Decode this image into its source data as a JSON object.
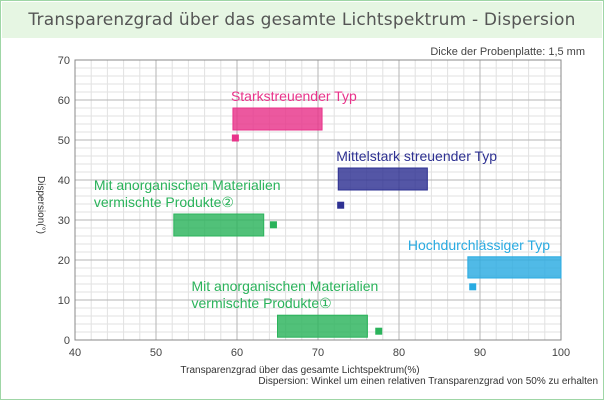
{
  "title": "Transparenzgrad über das gesamte Lichtspektrum  - Dispersion",
  "subtitle": "Dicke der Probenplatte: 1,5 mm",
  "footnote": "Dispersion: Winkel um einen relativen Transparenzgrad von 50% zu erhalten",
  "chart_data": {
    "type": "scatter",
    "title": "Transparenzgrad über das gesamte Lichtspektrum  - Dispersion",
    "xlabel": "Transparenzgrad über das gesamte Lichtspektrum(%)",
    "ylabel": "Dispersion(°)",
    "xlim": [
      40,
      100
    ],
    "ylim": [
      0,
      70
    ],
    "x_ticks": [
      40,
      50,
      60,
      70,
      80,
      90,
      100
    ],
    "y_ticks": [
      0,
      10,
      20,
      30,
      40,
      50,
      60,
      70
    ],
    "grid": true,
    "minor_grid": true,
    "series": [
      {
        "name": "Starkstreuender Typ",
        "color": "#e8338a",
        "label_lines": [
          "Starkstreuender Typ"
        ],
        "x_range": [
          59.5,
          70.5
        ],
        "y_range": [
          52.5,
          58
        ],
        "point": [
          59.8,
          50.5
        ]
      },
      {
        "name": "Mittelstark streuender Typ",
        "color": "#2e3192",
        "label_lines": [
          "Mittelstark streuender Typ"
        ],
        "x_range": [
          72.5,
          83.5
        ],
        "y_range": [
          37.5,
          43
        ],
        "point": [
          72.8,
          33.7
        ]
      },
      {
        "name": "Mit anorganischen Materialien vermischte Produkte②",
        "color": "#2bb35b",
        "label_lines": [
          "Mit anorganischen Materialien",
          "vermischte Produkte②"
        ],
        "x_range": [
          52.2,
          63.3
        ],
        "y_range": [
          26,
          31.5
        ],
        "point": [
          64.5,
          28.8
        ]
      },
      {
        "name": "Hochdurchlässiger Typ",
        "color": "#29abe2",
        "label_lines": [
          "Hochdurchlässiger Typ"
        ],
        "x_range": [
          88.5,
          100
        ],
        "y_range": [
          15.5,
          20.8
        ],
        "point": [
          89.1,
          13.3
        ]
      },
      {
        "name": "Mit anorganischen Materialien vermischte Produkte①",
        "color": "#2bb35b",
        "label_lines": [
          "Mit anorganischen Materialien",
          "vermischte Produkte①"
        ],
        "x_range": [
          65,
          76.1
        ],
        "y_range": [
          0.7,
          6.2
        ],
        "point": [
          77.5,
          2.2
        ]
      }
    ]
  }
}
